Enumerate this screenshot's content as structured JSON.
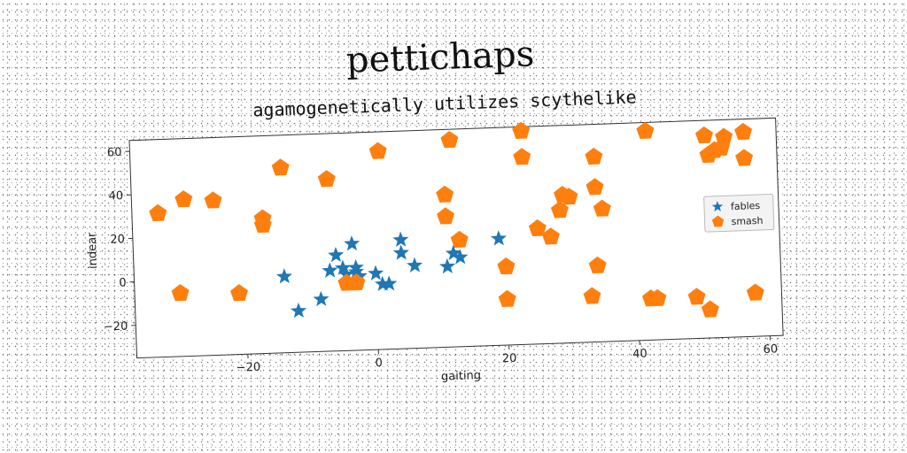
{
  "chart_data": {
    "type": "scatter",
    "title": "pettichaps",
    "subtitle": "agamogenetically utilizes scythelike",
    "xlabel": "gaiting",
    "ylabel": "indear",
    "xlim": [
      -37,
      62
    ],
    "ylim": [
      -35,
      65
    ],
    "xticks": [
      -20,
      0,
      20,
      40,
      60
    ],
    "yticks": [
      -20,
      0,
      20,
      40,
      60
    ],
    "grid": false,
    "legend_position": "center-right",
    "series": [
      {
        "name": "fables",
        "marker": "star",
        "color": "#1f77b4",
        "x": [
          -14,
          -12,
          -8.5,
          -7,
          -6,
          -5,
          -4.5,
          -3.5,
          -3,
          -3,
          -2.5,
          0,
          1,
          2,
          4,
          4,
          6,
          11,
          12,
          13,
          19
        ],
        "y": [
          0,
          -16,
          -11,
          2,
          9,
          3,
          0,
          14,
          3,
          1,
          -1,
          0,
          -5,
          -5,
          15,
          9,
          3,
          2,
          8,
          6,
          14
        ]
      },
      {
        "name": "smash",
        "marker": "pentagon",
        "color": "#ff7f0e",
        "x": [
          -33,
          -29,
          -30,
          -24.5,
          -21,
          -17,
          -17,
          -14,
          -7,
          -4.5,
          -3,
          1,
          11,
          11,
          12,
          13,
          20,
          20,
          23,
          23,
          25,
          27,
          28.5,
          29,
          30,
          33,
          34,
          34,
          34,
          35,
          42,
          42,
          43,
          49,
          51,
          51,
          51.5,
          52.5,
          53.5,
          54,
          57,
          57,
          58
        ],
        "y": [
          31,
          37,
          -6,
          36,
          -7,
          27,
          24,
          50,
          44,
          -4,
          -4,
          56,
          35,
          25,
          60,
          14,
          -14,
          1,
          63,
          51,
          18,
          14,
          26,
          33,
          32,
          -14,
          50,
          36,
          0,
          26,
          61,
          -16,
          -16,
          -16,
          -22,
          58,
          49,
          51,
          52,
          57,
          59,
          47,
          -15
        ]
      }
    ]
  }
}
